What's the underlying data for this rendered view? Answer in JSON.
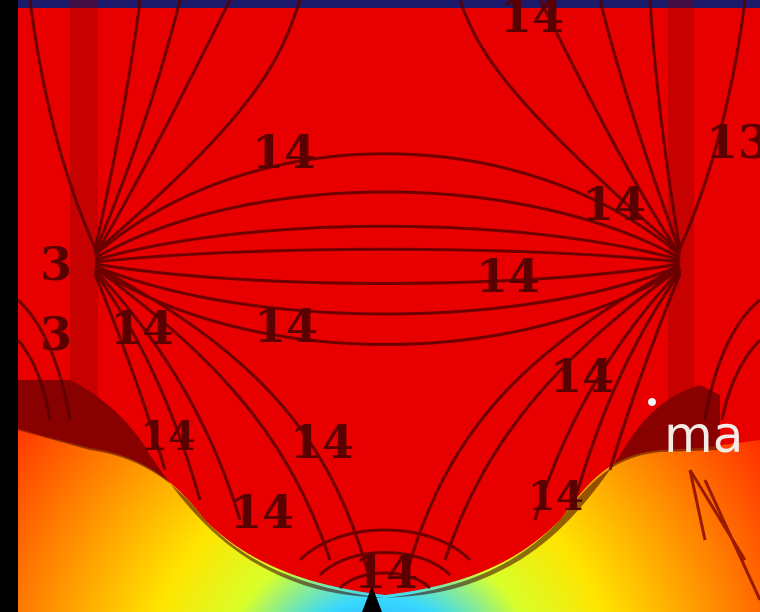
{
  "contour_labels": [
    "14",
    "14",
    "14",
    "14",
    "14",
    "14",
    "14",
    "14",
    "14",
    "14",
    "14",
    "14",
    "13",
    "3",
    "3"
  ],
  "annotation": "ma",
  "colors": {
    "background": "#000000",
    "field_high": "#e80000",
    "contour": "#5a0000",
    "gradient": [
      "#ff2a00",
      "#ff8a00",
      "#ffe200",
      "#d8ff2a",
      "#38e0ff",
      "#1a8cff"
    ]
  }
}
